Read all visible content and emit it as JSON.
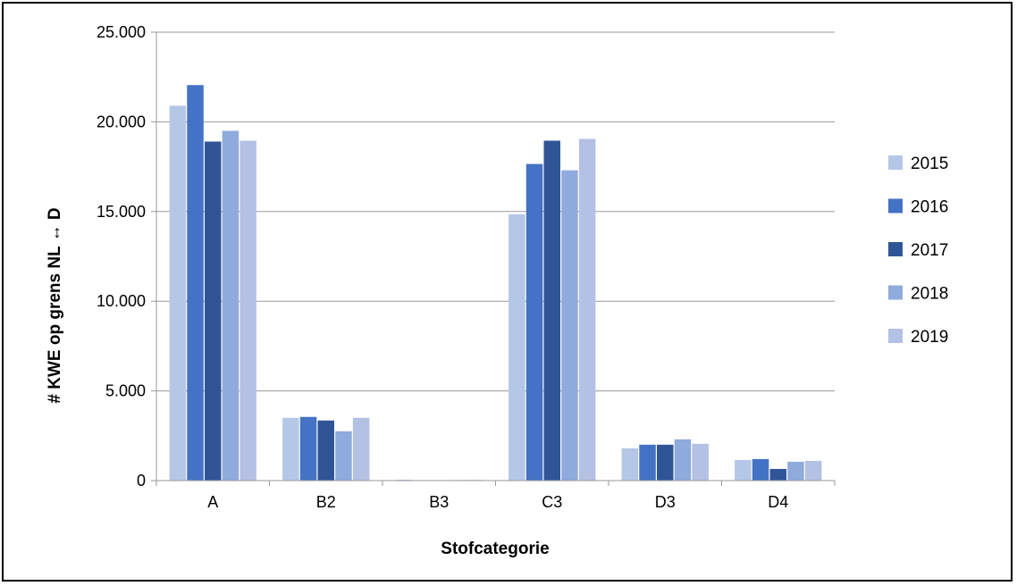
{
  "chart_data": {
    "type": "bar",
    "title": "",
    "xlabel": "Stofcategorie",
    "ylabel": "# KWE op grens NL ↔ D",
    "categories": [
      "A",
      "B2",
      "B3",
      "C3",
      "D3",
      "D4"
    ],
    "ylim": [
      0,
      25000
    ],
    "yticks": [
      0,
      5000,
      10000,
      15000,
      20000,
      25000
    ],
    "ytick_labels": [
      "0",
      "5.000",
      "10.000",
      "15.000",
      "20.000",
      "25.000"
    ],
    "grid": true,
    "legend_position": "right",
    "series": [
      {
        "name": "2015",
        "color": "#b4c7e7",
        "values": [
          20900,
          3500,
          50,
          14850,
          1800,
          1150
        ]
      },
      {
        "name": "2016",
        "color": "#4472c4",
        "values": [
          22050,
          3550,
          20,
          17650,
          2000,
          1200
        ]
      },
      {
        "name": "2017",
        "color": "#2f5597",
        "values": [
          18900,
          3350,
          15,
          18950,
          2000,
          650
        ]
      },
      {
        "name": "2018",
        "color": "#8faadc",
        "values": [
          19500,
          2750,
          30,
          17300,
          2300,
          1050
        ]
      },
      {
        "name": "2019",
        "color": "#b4c0e4",
        "values": [
          18950,
          3500,
          40,
          19050,
          2050,
          1100
        ]
      }
    ]
  }
}
